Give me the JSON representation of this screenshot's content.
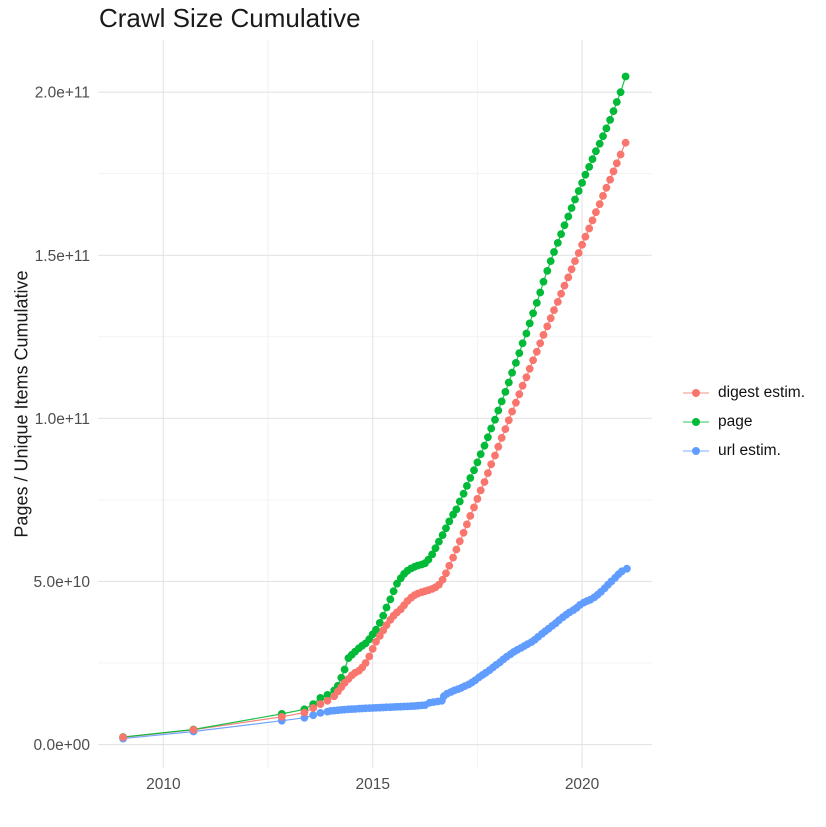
{
  "page": {
    "background": "#FFFFFF"
  },
  "chart_data": {
    "type": "scatter-line",
    "title": "Crawl Size Cumulative",
    "xlabel": "",
    "ylabel": "Pages / Unique Items Cumulative",
    "values_unit": "billions (1e9) of pages / unique items",
    "xlim": [
      2008.44,
      2021.67
    ],
    "ylim_e9": [
      -7.2,
      216
    ],
    "grid": true,
    "legend_position": "right",
    "x_ticks": [
      {
        "value": 2010,
        "label": "2010"
      },
      {
        "value": 2015,
        "label": "2015"
      },
      {
        "value": 2020,
        "label": "2020"
      }
    ],
    "x_minor_ticks": [
      2012.5,
      2017.5
    ],
    "y_ticks": [
      {
        "value": 0,
        "label": "0.0e+00"
      },
      {
        "value": 50,
        "label": "5.0e+10"
      },
      {
        "value": 100,
        "label": "1.0e+11"
      },
      {
        "value": 150,
        "label": "1.5e+11"
      },
      {
        "value": 200,
        "label": "2.0e+11"
      }
    ],
    "y_minor_ticks": [
      25,
      75,
      125,
      175
    ],
    "colors": {
      "grid_major": "#E4E4E4",
      "grid_minor": "#F1F1F1",
      "tick_text": "#4D4D4D",
      "title_text": "#1A1A1A",
      "digest": "#F8766D",
      "page": "#00BA38",
      "url": "#619CFF"
    },
    "series": [
      {
        "name": "digest estim.",
        "id": "digest-estim",
        "color": "#F8766D",
        "points": [
          [
            2009.04,
            2.2
          ],
          [
            2010.72,
            4.5
          ],
          [
            2012.83,
            8.5
          ],
          [
            2013.37,
            9.8
          ],
          [
            2013.58,
            11.2
          ],
          [
            2013.75,
            12.4
          ],
          [
            2013.92,
            13.4
          ],
          [
            2014.08,
            14.8
          ],
          [
            2014.17,
            16.3
          ],
          [
            2014.25,
            17.6
          ],
          [
            2014.33,
            18.9
          ],
          [
            2014.42,
            20.1
          ],
          [
            2014.5,
            21.2
          ],
          [
            2014.58,
            22.0
          ],
          [
            2014.67,
            22.6
          ],
          [
            2014.75,
            23.6
          ],
          [
            2014.83,
            25.0
          ],
          [
            2014.92,
            27.0
          ],
          [
            2015.0,
            29.3
          ],
          [
            2015.08,
            31.5
          ],
          [
            2015.17,
            33.3
          ],
          [
            2015.25,
            35.0
          ],
          [
            2015.33,
            36.6
          ],
          [
            2015.42,
            38.2
          ],
          [
            2015.5,
            39.5
          ],
          [
            2015.58,
            40.5
          ],
          [
            2015.67,
            41.5
          ],
          [
            2015.75,
            42.7
          ],
          [
            2015.83,
            44.0
          ],
          [
            2015.92,
            45.0
          ],
          [
            2016.0,
            45.8
          ],
          [
            2016.08,
            46.3
          ],
          [
            2016.17,
            46.7
          ],
          [
            2016.25,
            47.0
          ],
          [
            2016.33,
            47.3
          ],
          [
            2016.42,
            47.7
          ],
          [
            2016.5,
            48.2
          ],
          [
            2016.58,
            49.0
          ],
          [
            2016.67,
            50.5
          ],
          [
            2016.75,
            52.5
          ],
          [
            2016.83,
            54.8
          ],
          [
            2016.92,
            57.3
          ],
          [
            2017.0,
            59.8
          ],
          [
            2017.08,
            62.3
          ],
          [
            2017.17,
            64.9
          ],
          [
            2017.25,
            67.5
          ],
          [
            2017.33,
            70.1
          ],
          [
            2017.42,
            72.7
          ],
          [
            2017.5,
            75.3
          ],
          [
            2017.58,
            77.9
          ],
          [
            2017.67,
            80.5
          ],
          [
            2017.75,
            83.2
          ],
          [
            2017.83,
            85.9
          ],
          [
            2017.92,
            88.6
          ],
          [
            2018.0,
            91.3
          ],
          [
            2018.08,
            94.0
          ],
          [
            2018.17,
            96.7
          ],
          [
            2018.25,
            99.4
          ],
          [
            2018.33,
            102.1
          ],
          [
            2018.42,
            104.8
          ],
          [
            2018.5,
            107.4
          ],
          [
            2018.58,
            110.0
          ],
          [
            2018.67,
            112.6
          ],
          [
            2018.75,
            115.2
          ],
          [
            2018.83,
            117.8
          ],
          [
            2018.92,
            120.4
          ],
          [
            2019.0,
            123.0
          ],
          [
            2019.08,
            125.6
          ],
          [
            2019.17,
            128.2
          ],
          [
            2019.25,
            130.7
          ],
          [
            2019.33,
            133.2
          ],
          [
            2019.42,
            135.7
          ],
          [
            2019.5,
            138.2
          ],
          [
            2019.58,
            140.7
          ],
          [
            2019.67,
            143.2
          ],
          [
            2019.75,
            145.7
          ],
          [
            2019.83,
            148.2
          ],
          [
            2019.92,
            150.7
          ],
          [
            2020.0,
            153.2
          ],
          [
            2020.08,
            155.7
          ],
          [
            2020.17,
            158.2
          ],
          [
            2020.25,
            160.7
          ],
          [
            2020.33,
            163.2
          ],
          [
            2020.42,
            165.7
          ],
          [
            2020.5,
            168.2
          ],
          [
            2020.58,
            170.7
          ],
          [
            2020.67,
            173.2
          ],
          [
            2020.75,
            175.7
          ],
          [
            2020.83,
            178.2
          ],
          [
            2020.92,
            180.9
          ],
          [
            2021.04,
            184.5
          ]
        ]
      },
      {
        "name": "page",
        "id": "page",
        "color": "#00BA38",
        "points": [
          [
            2009.04,
            2.3
          ],
          [
            2010.72,
            4.6
          ],
          [
            2012.83,
            9.4
          ],
          [
            2013.37,
            10.8
          ],
          [
            2013.58,
            12.4
          ],
          [
            2013.75,
            14.3
          ],
          [
            2013.92,
            15.2
          ],
          [
            2014.08,
            16.6
          ],
          [
            2014.17,
            18.0
          ],
          [
            2014.25,
            20.5
          ],
          [
            2014.33,
            23.0
          ],
          [
            2014.42,
            26.5
          ],
          [
            2014.5,
            27.5
          ],
          [
            2014.58,
            28.5
          ],
          [
            2014.67,
            29.5
          ],
          [
            2014.75,
            30.3
          ],
          [
            2014.83,
            31.0
          ],
          [
            2014.92,
            32.3
          ],
          [
            2015.0,
            33.8
          ],
          [
            2015.08,
            35.2
          ],
          [
            2015.17,
            37.3
          ],
          [
            2015.25,
            39.5
          ],
          [
            2015.33,
            42.0
          ],
          [
            2015.42,
            44.5
          ],
          [
            2015.5,
            47.0
          ],
          [
            2015.58,
            49.3
          ],
          [
            2015.67,
            51.0
          ],
          [
            2015.75,
            52.3
          ],
          [
            2015.83,
            53.3
          ],
          [
            2015.92,
            54.0
          ],
          [
            2016.0,
            54.5
          ],
          [
            2016.08,
            54.9
          ],
          [
            2016.17,
            55.2
          ],
          [
            2016.25,
            55.6
          ],
          [
            2016.33,
            56.7
          ],
          [
            2016.42,
            58.3
          ],
          [
            2016.5,
            60.2
          ],
          [
            2016.58,
            62.2
          ],
          [
            2016.67,
            64.2
          ],
          [
            2016.75,
            66.3
          ],
          [
            2016.83,
            68.4
          ],
          [
            2016.92,
            70.5
          ],
          [
            2017.0,
            72.1
          ],
          [
            2017.08,
            74.5
          ],
          [
            2017.17,
            76.9
          ],
          [
            2017.25,
            79.3
          ],
          [
            2017.33,
            81.7
          ],
          [
            2017.42,
            84.1
          ],
          [
            2017.5,
            86.5
          ],
          [
            2017.58,
            89.0
          ],
          [
            2017.67,
            91.6
          ],
          [
            2017.75,
            94.2
          ],
          [
            2017.83,
            96.9
          ],
          [
            2017.92,
            99.6
          ],
          [
            2018.0,
            102.4
          ],
          [
            2018.08,
            105.2
          ],
          [
            2018.17,
            108.1
          ],
          [
            2018.25,
            111.0
          ],
          [
            2018.33,
            114.0
          ],
          [
            2018.42,
            117.0
          ],
          [
            2018.5,
            120.0
          ],
          [
            2018.58,
            123.0
          ],
          [
            2018.67,
            126.0
          ],
          [
            2018.75,
            129.1
          ],
          [
            2018.83,
            132.2
          ],
          [
            2018.92,
            135.4
          ],
          [
            2019.0,
            138.6
          ],
          [
            2019.08,
            141.9
          ],
          [
            2019.17,
            145.2
          ],
          [
            2019.25,
            148.2
          ],
          [
            2019.33,
            151.0
          ],
          [
            2019.42,
            153.8
          ],
          [
            2019.5,
            156.5
          ],
          [
            2019.58,
            159.2
          ],
          [
            2019.67,
            161.9
          ],
          [
            2019.75,
            164.5
          ],
          [
            2019.83,
            167.1
          ],
          [
            2019.92,
            169.7
          ],
          [
            2020.0,
            172.2
          ],
          [
            2020.08,
            174.7
          ],
          [
            2020.17,
            177.1
          ],
          [
            2020.25,
            179.5
          ],
          [
            2020.33,
            181.9
          ],
          [
            2020.42,
            184.2
          ],
          [
            2020.5,
            186.5
          ],
          [
            2020.58,
            188.9
          ],
          [
            2020.67,
            191.5
          ],
          [
            2020.75,
            194.2
          ],
          [
            2020.83,
            197.0
          ],
          [
            2020.92,
            200.0
          ],
          [
            2021.04,
            204.8
          ]
        ]
      },
      {
        "name": "url estim.",
        "id": "url-estim",
        "color": "#619CFF",
        "points": [
          [
            2009.04,
            1.8
          ],
          [
            2010.72,
            4.0
          ],
          [
            2012.83,
            7.3
          ],
          [
            2013.37,
            8.2
          ],
          [
            2013.58,
            9.0
          ],
          [
            2013.75,
            9.7
          ],
          [
            2013.92,
            10.1
          ],
          [
            2014.0,
            10.3
          ],
          [
            2014.08,
            10.4
          ],
          [
            2014.17,
            10.5
          ],
          [
            2014.25,
            10.6
          ],
          [
            2014.33,
            10.7
          ],
          [
            2014.42,
            10.8
          ],
          [
            2014.5,
            10.85
          ],
          [
            2014.58,
            10.9
          ],
          [
            2014.67,
            11.0
          ],
          [
            2014.75,
            11.05
          ],
          [
            2014.83,
            11.1
          ],
          [
            2014.92,
            11.15
          ],
          [
            2015.0,
            11.2
          ],
          [
            2015.08,
            11.25
          ],
          [
            2015.17,
            11.3
          ],
          [
            2015.25,
            11.35
          ],
          [
            2015.33,
            11.4
          ],
          [
            2015.42,
            11.45
          ],
          [
            2015.5,
            11.5
          ],
          [
            2015.58,
            11.55
          ],
          [
            2015.67,
            11.6
          ],
          [
            2015.75,
            11.65
          ],
          [
            2015.83,
            11.7
          ],
          [
            2015.92,
            11.75
          ],
          [
            2016.0,
            11.8
          ],
          [
            2016.08,
            11.9
          ],
          [
            2016.17,
            12.0
          ],
          [
            2016.25,
            12.1
          ],
          [
            2016.36,
            12.8
          ],
          [
            2016.45,
            13.0
          ],
          [
            2016.55,
            13.2
          ],
          [
            2016.65,
            13.4
          ],
          [
            2016.7,
            14.8
          ],
          [
            2016.78,
            15.6
          ],
          [
            2016.87,
            16.1
          ],
          [
            2016.95,
            16.6
          ],
          [
            2017.04,
            17.0
          ],
          [
            2017.12,
            17.4
          ],
          [
            2017.2,
            17.9
          ],
          [
            2017.29,
            18.4
          ],
          [
            2017.37,
            19.0
          ],
          [
            2017.45,
            19.7
          ],
          [
            2017.54,
            20.6
          ],
          [
            2017.62,
            21.3
          ],
          [
            2017.7,
            22.0
          ],
          [
            2017.79,
            22.8
          ],
          [
            2017.87,
            23.6
          ],
          [
            2017.95,
            24.4
          ],
          [
            2018.04,
            25.2
          ],
          [
            2018.12,
            26.1
          ],
          [
            2018.2,
            26.9
          ],
          [
            2018.29,
            27.7
          ],
          [
            2018.37,
            28.4
          ],
          [
            2018.45,
            29.0
          ],
          [
            2018.54,
            29.6
          ],
          [
            2018.62,
            30.2
          ],
          [
            2018.7,
            30.8
          ],
          [
            2018.79,
            31.4
          ],
          [
            2018.87,
            32.1
          ],
          [
            2018.95,
            33.0
          ],
          [
            2019.04,
            33.9
          ],
          [
            2019.12,
            34.7
          ],
          [
            2019.2,
            35.5
          ],
          [
            2019.29,
            36.4
          ],
          [
            2019.37,
            37.2
          ],
          [
            2019.45,
            38.1
          ],
          [
            2019.54,
            39.0
          ],
          [
            2019.62,
            39.8
          ],
          [
            2019.7,
            40.5
          ],
          [
            2019.79,
            41.2
          ],
          [
            2019.87,
            41.9
          ],
          [
            2019.95,
            42.8
          ],
          [
            2020.04,
            43.5
          ],
          [
            2020.12,
            44.0
          ],
          [
            2020.2,
            44.4
          ],
          [
            2020.29,
            45.1
          ],
          [
            2020.37,
            45.9
          ],
          [
            2020.45,
            46.8
          ],
          [
            2020.54,
            47.9
          ],
          [
            2020.62,
            49.0
          ],
          [
            2020.7,
            50.0
          ],
          [
            2020.79,
            51.1
          ],
          [
            2020.87,
            52.2
          ],
          [
            2020.95,
            53.1
          ],
          [
            2021.07,
            53.9
          ]
        ]
      }
    ]
  }
}
